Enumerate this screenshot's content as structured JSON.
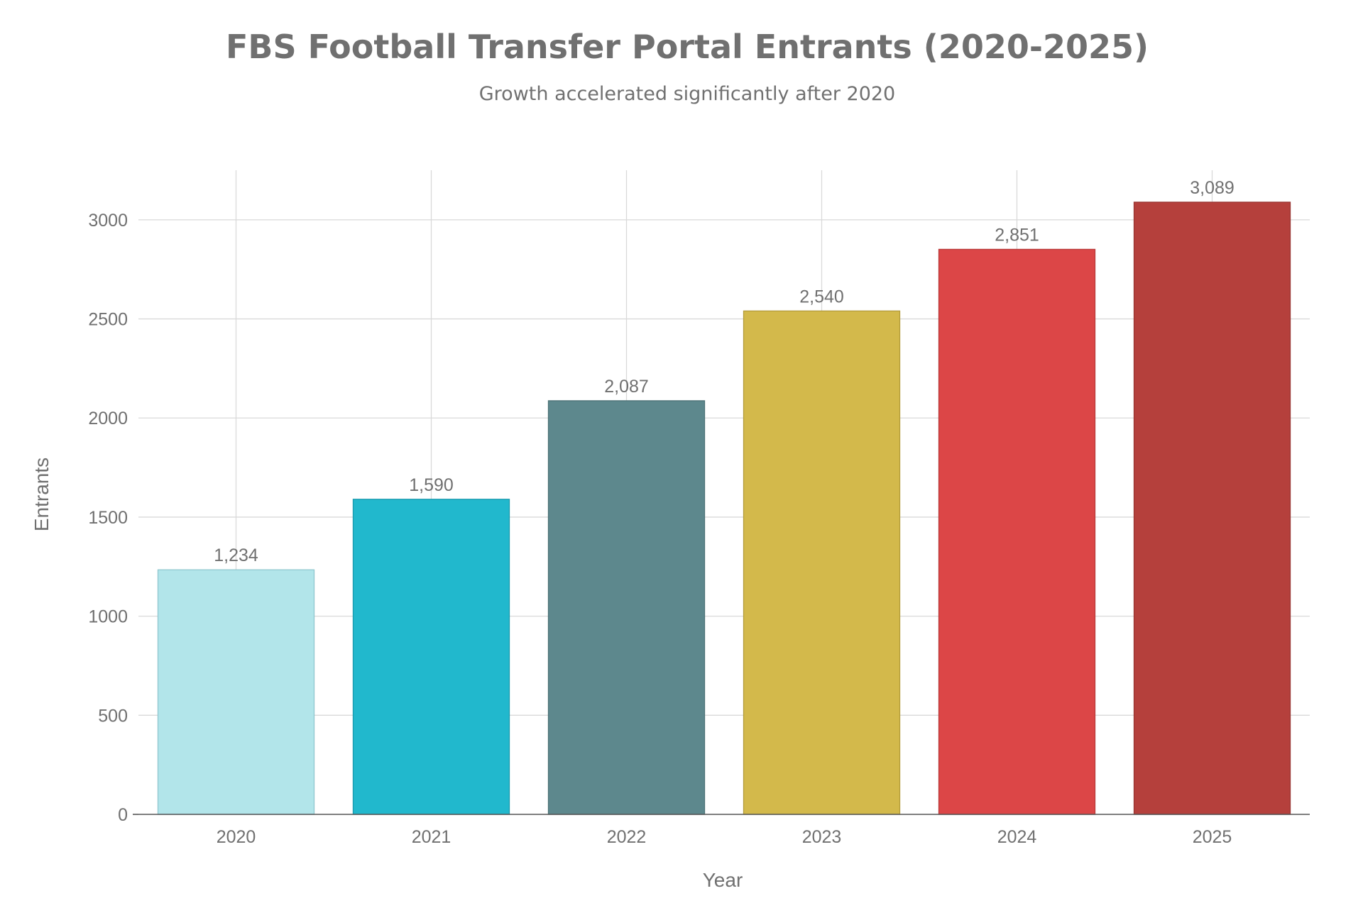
{
  "chart_data": {
    "type": "bar",
    "title": "FBS Football Transfer Portal Entrants (2020-2025)",
    "subtitle": "Growth accelerated significantly after 2020",
    "xlabel": "Year",
    "ylabel": "Entrants",
    "categories": [
      "2020",
      "2021",
      "2022",
      "2023",
      "2024",
      "2025"
    ],
    "values": [
      1234,
      1590,
      2087,
      2540,
      2851,
      3089
    ],
    "data_labels": [
      "1,234",
      "1,590",
      "2,087",
      "2,540",
      "2,851",
      "3,089"
    ],
    "colors": [
      "#b2e5ea",
      "#21b8cd",
      "#5d888d",
      "#d3b94b",
      "#dc4647",
      "#b5403c"
    ],
    "bar_edge_colors": [
      "#8fc7cf",
      "#1a9aad",
      "#4d7276",
      "#b39c3c",
      "#b93a3b",
      "#983431"
    ],
    "yticks": [
      0,
      500,
      1000,
      1500,
      2000,
      2500,
      3000
    ],
    "ytick_labels": [
      "0",
      "500",
      "1000",
      "1500",
      "2000",
      "2500",
      "3000"
    ],
    "ylim": [
      0,
      3250
    ],
    "grid": true,
    "legend": "none"
  }
}
